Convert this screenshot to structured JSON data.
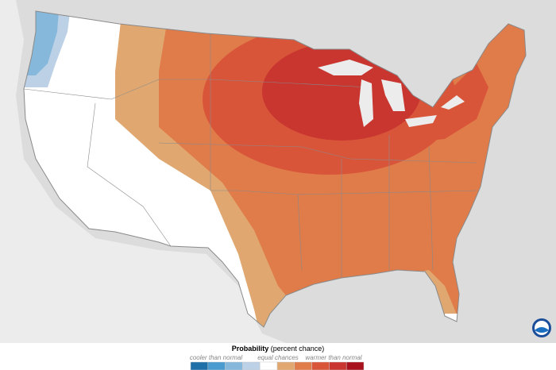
{
  "legend": {
    "title": "Probability",
    "subtitle": "(percent chance)",
    "cooler_label": "cooler than normal",
    "equal_label": "equal chances",
    "warmer_label": "warmer than normal",
    "colors": [
      "#1f6fa8",
      "#4a9bcf",
      "#86b8dc",
      "#bcd0e6",
      "#ffffff",
      "#e0a870",
      "#e07b4a",
      "#d9553a",
      "#c8362f",
      "#a8121c"
    ]
  }
}
